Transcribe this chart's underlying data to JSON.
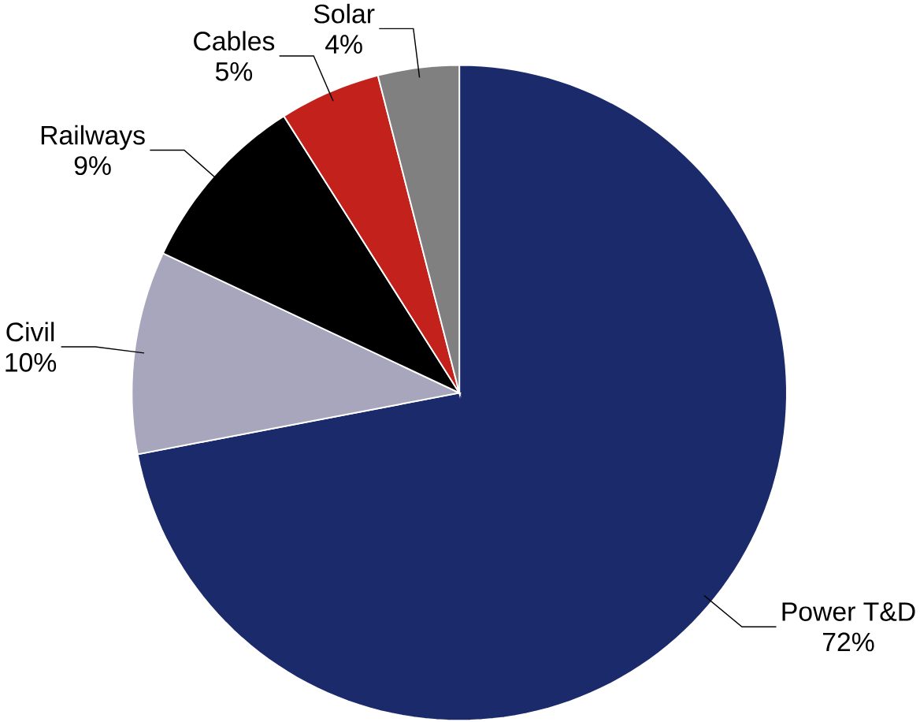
{
  "chart_data": {
    "type": "pie",
    "categories": [
      "Power T&D",
      "Civil",
      "Railways",
      "Cables",
      "Solar"
    ],
    "values": [
      72,
      10,
      9,
      5,
      4
    ],
    "value_labels": [
      "72%",
      "10%",
      "9%",
      "5%",
      "4%"
    ],
    "colors": [
      "#1b2a6b",
      "#a7a6bd",
      "#000000",
      "#c3211c",
      "#808080"
    ]
  }
}
